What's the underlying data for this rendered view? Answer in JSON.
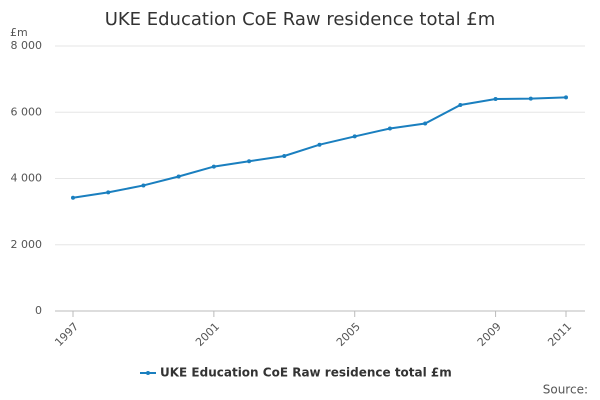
{
  "chart_data": {
    "type": "line",
    "title": "UKE Education CoE Raw residence total £m",
    "ylabel": "£m",
    "x": [
      1997,
      1998,
      1999,
      2000,
      2001,
      2002,
      2003,
      2004,
      2005,
      2006,
      2007,
      2008,
      2009,
      2010,
      2011
    ],
    "series": [
      {
        "name": "UKE Education CoE Raw residence total £m",
        "color": "#1a7fbf",
        "values": [
          3420,
          3580,
          3790,
          4060,
          4360,
          4520,
          4680,
          5020,
          5270,
          5510,
          5660,
          6220,
          6400,
          6410,
          6450
        ]
      }
    ],
    "xlim": [
      1997,
      2011
    ],
    "xticks": [
      1997,
      2001,
      2005,
      2009,
      2011
    ],
    "ylim": [
      0,
      8000
    ],
    "yticks": [
      0,
      {
        "value": 2000,
        "label": "2 000"
      },
      {
        "value": 4000,
        "label": "4 000"
      },
      {
        "value": 6000,
        "label": "6 000"
      },
      {
        "value": 8000,
        "label": "8 000"
      }
    ],
    "grid": true,
    "legend": "bottom",
    "source": "Source:"
  }
}
